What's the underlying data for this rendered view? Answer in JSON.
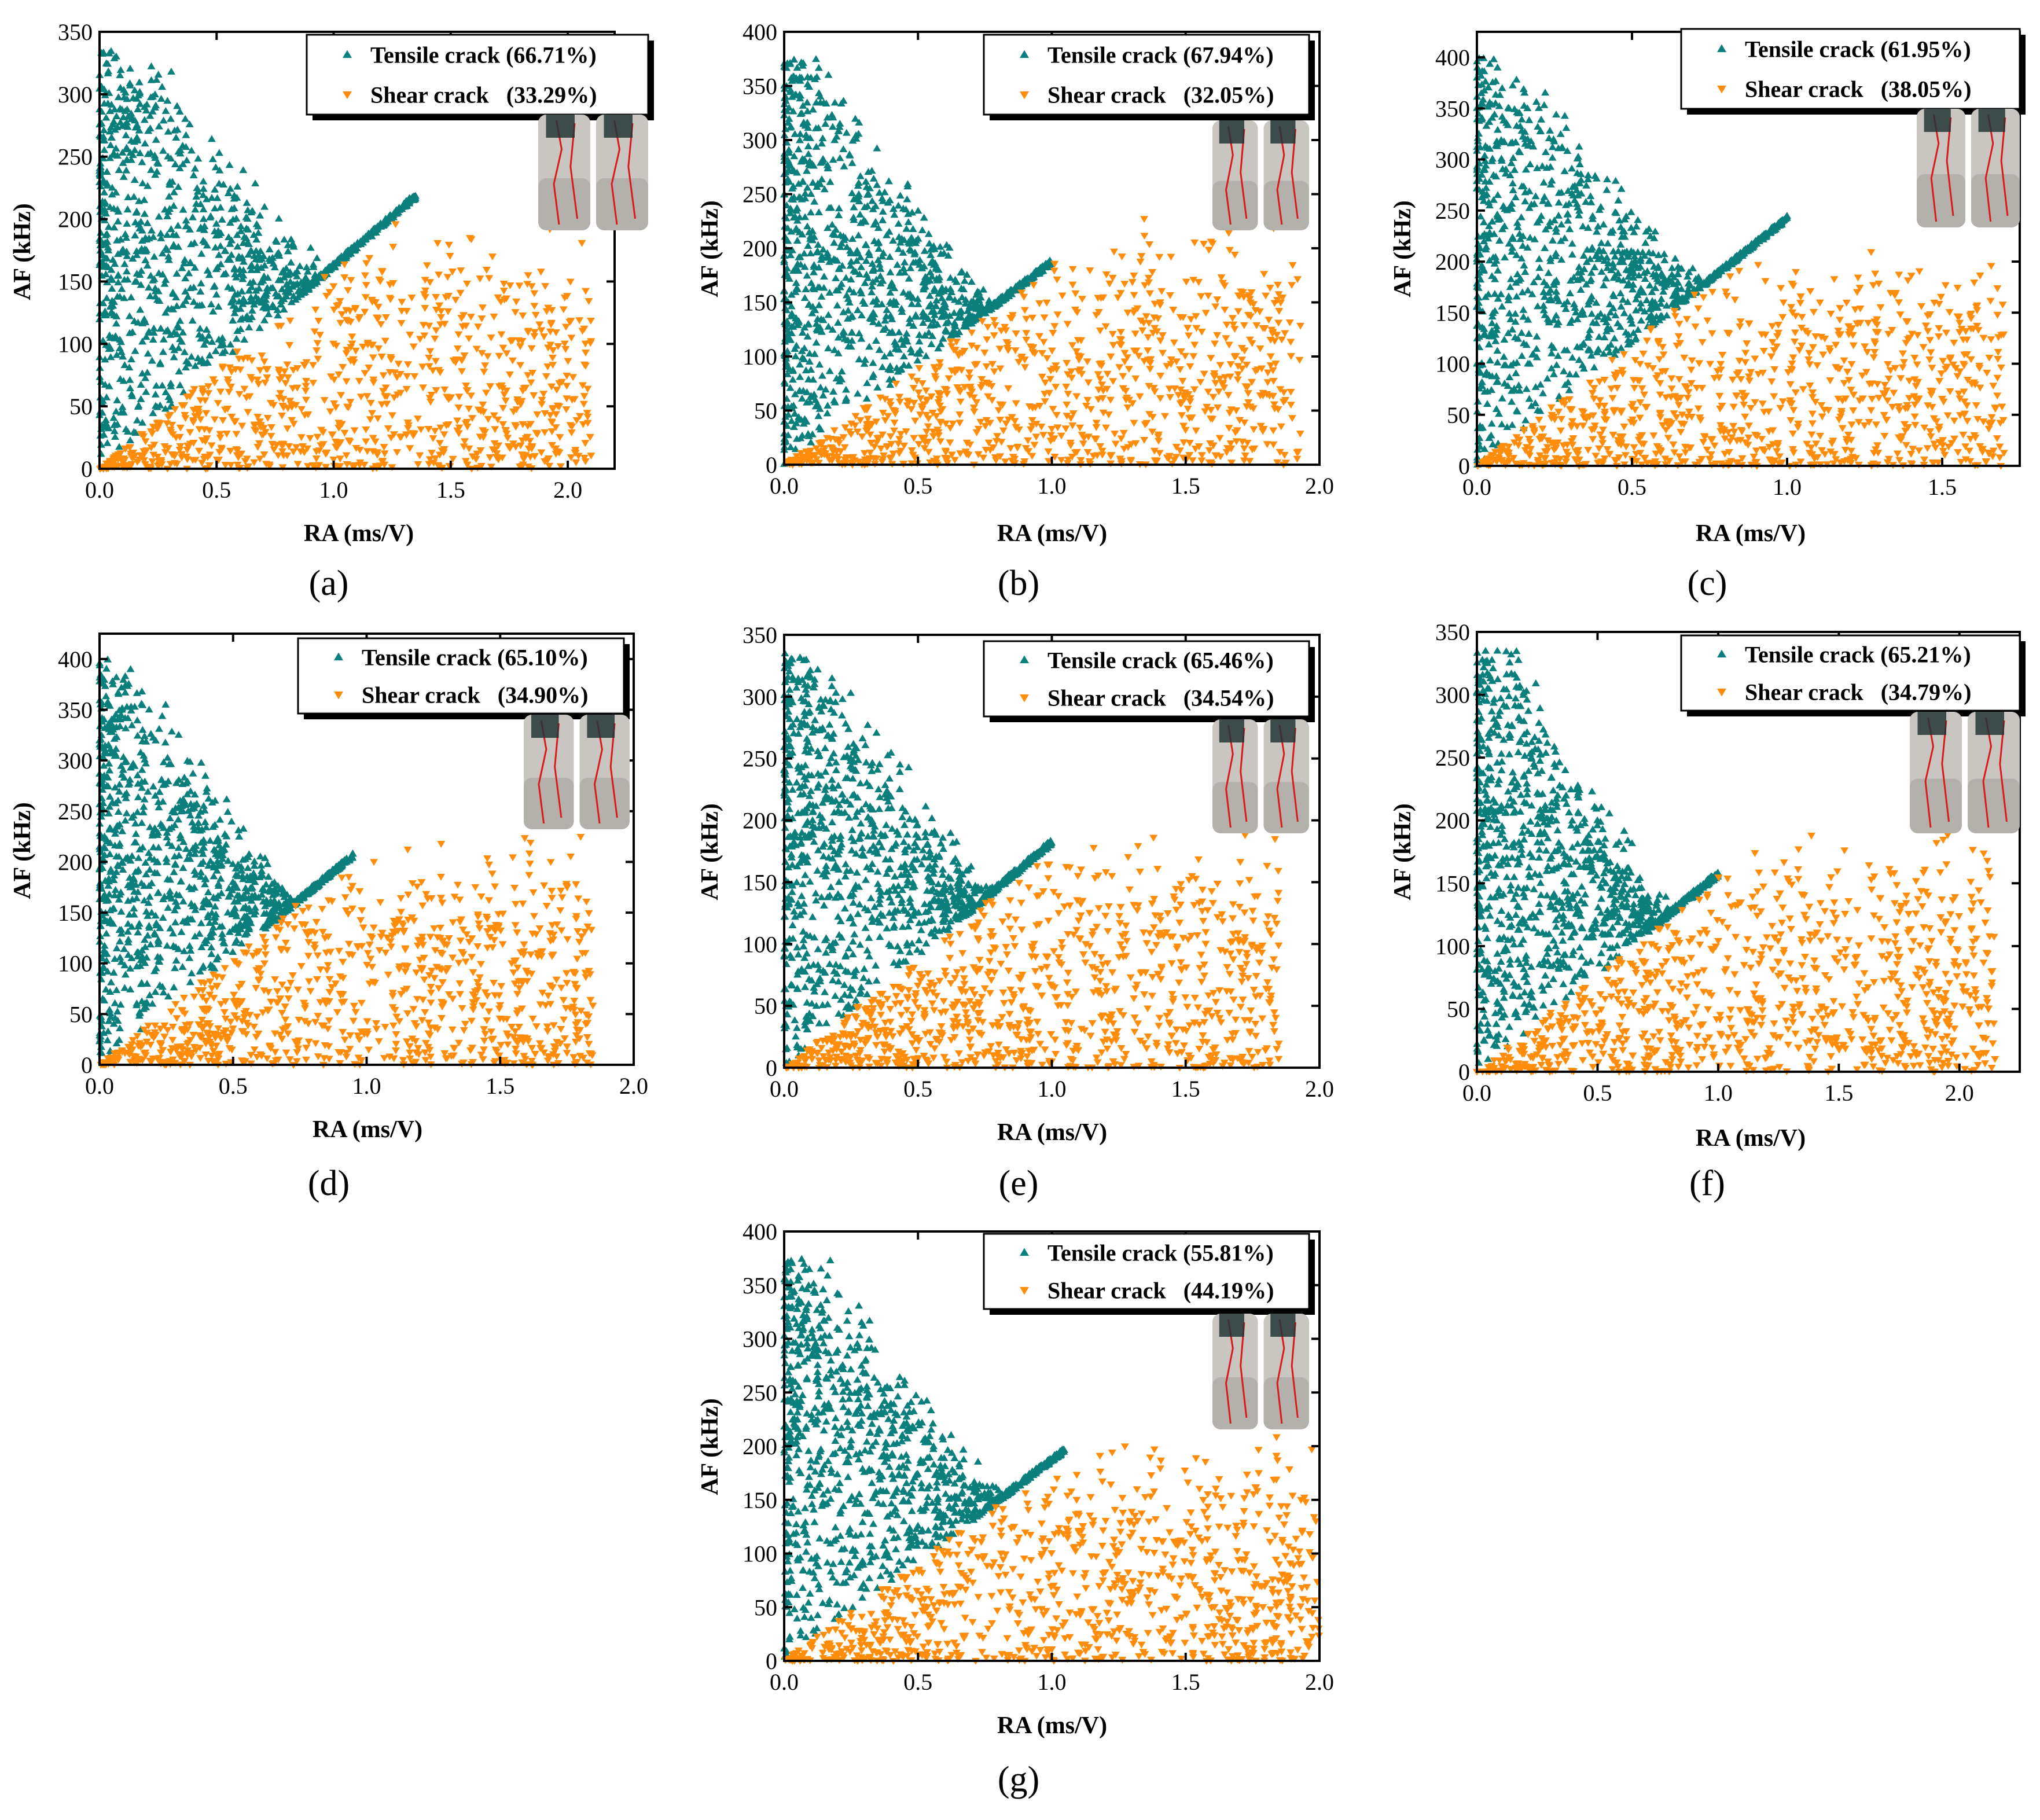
{
  "figure": {
    "colors": {
      "tensile": "#0b7f7c",
      "shear": "#ff8c0a"
    },
    "inset_icon": "cracked-cylinder-photo",
    "panels": [
      {
        "label": "(a)",
        "xlabel": "RA (ms/V)",
        "ylabel": "AF (kHz)",
        "xlim": [
          0,
          2.2
        ],
        "ylim": [
          0,
          350
        ],
        "xticks": [
          "0.0",
          "0.5",
          "1.0",
          "1.5",
          "2.0"
        ],
        "yticks": [
          "0",
          "50",
          "100",
          "150",
          "200",
          "250",
          "300",
          "350"
        ],
        "legend": [
          "Tensile crack (66.71%)",
          "Shear crack   (33.29%)"
        ]
      },
      {
        "label": "(b)",
        "xlabel": "RA (ms/V)",
        "ylabel": "AF (kHz)",
        "xlim": [
          0,
          2.0
        ],
        "ylim": [
          0,
          400
        ],
        "xticks": [
          "0.0",
          "0.5",
          "1.0",
          "1.5",
          "2.0"
        ],
        "yticks": [
          "0",
          "50",
          "100",
          "150",
          "200",
          "250",
          "300",
          "350",
          "400"
        ],
        "legend": [
          "Tensile crack (67.94%)",
          "Shear crack   (32.05%)"
        ]
      },
      {
        "label": "(c)",
        "xlabel": "RA (ms/V)",
        "ylabel": "AF (kHz)",
        "xlim": [
          0,
          1.75
        ],
        "ylim": [
          0,
          425
        ],
        "xticks": [
          "0.0",
          "0.5",
          "1.0",
          "1.5"
        ],
        "yticks": [
          "0",
          "50",
          "100",
          "150",
          "200",
          "250",
          "300",
          "350",
          "400"
        ],
        "legend": [
          "Tensile crack (61.95%)",
          "Shear crack   (38.05%)"
        ]
      },
      {
        "label": "(d)",
        "xlabel": "RA (ms/V)",
        "ylabel": "AF (kHz)",
        "xlim": [
          0,
          2.0
        ],
        "ylim": [
          0,
          425
        ],
        "xticks": [
          "0.0",
          "0.5",
          "1.0",
          "1.5",
          "2.0"
        ],
        "yticks": [
          "0",
          "50",
          "100",
          "150",
          "200",
          "250",
          "300",
          "350",
          "400"
        ],
        "legend": [
          "Tensile crack (65.10%)",
          "Shear crack   (34.90%)"
        ]
      },
      {
        "label": "(e)",
        "xlabel": "RA (ms/V)",
        "ylabel": "AF (kHz)",
        "xlim": [
          0,
          2.0
        ],
        "ylim": [
          0,
          350
        ],
        "xticks": [
          "0.0",
          "0.5",
          "1.0",
          "1.5",
          "2.0"
        ],
        "yticks": [
          "0",
          "50",
          "100",
          "150",
          "200",
          "250",
          "300",
          "350"
        ],
        "legend": [
          "Tensile crack (65.46%)",
          "Shear crack   (34.54%)"
        ]
      },
      {
        "label": "(f)",
        "xlabel": "RA (ms/V)",
        "ylabel": "AF (kHz)",
        "xlim": [
          0,
          2.25
        ],
        "ylim": [
          0,
          350
        ],
        "xticks": [
          "0.0",
          "0.5",
          "1.0",
          "1.5",
          "2.0"
        ],
        "yticks": [
          "0",
          "50",
          "100",
          "150",
          "200",
          "250",
          "300",
          "350"
        ],
        "legend": [
          "Tensile crack (65.21%)",
          "Shear crack   (34.79%)"
        ]
      },
      {
        "label": "(g)",
        "xlabel": "RA (ms/V)",
        "ylabel": "AF (kHz)",
        "xlim": [
          0,
          2.0
        ],
        "ylim": [
          0,
          400
        ],
        "xticks": [
          "0.0",
          "0.5",
          "1.0",
          "1.5",
          "2.0"
        ],
        "yticks": [
          "0",
          "50",
          "100",
          "150",
          "200",
          "250",
          "300",
          "350",
          "400"
        ],
        "legend": [
          "Tensile crack (55.81%)",
          "Shear crack   (44.19%)"
        ]
      }
    ]
  },
  "chart_data": [
    {
      "type": "scatter",
      "title": "(a)",
      "xlabel": "RA (ms/V)",
      "ylabel": "AF (kHz)",
      "xlim": [
        0,
        2.2
      ],
      "ylim": [
        0,
        350
      ],
      "boundary_slope_kHz_per_ms_per_V": 160,
      "series": [
        {
          "name": "Tensile crack",
          "percent": 66.71,
          "x_range": [
            0,
            1.35
          ],
          "y_range": [
            0,
            335
          ]
        },
        {
          "name": "Shear crack",
          "percent": 33.29,
          "x_range": [
            0,
            2.1
          ],
          "y_range": [
            0,
            205
          ]
        }
      ]
    },
    {
      "type": "scatter",
      "title": "(b)",
      "xlabel": "RA (ms/V)",
      "ylabel": "AF (kHz)",
      "xlim": [
        0,
        2.0
      ],
      "ylim": [
        0,
        400
      ],
      "boundary_slope_kHz_per_ms_per_V": 185,
      "series": [
        {
          "name": "Tensile crack",
          "percent": 67.94,
          "x_range": [
            0,
            1.0
          ],
          "y_range": [
            0,
            375
          ]
        },
        {
          "name": "Shear crack",
          "percent": 32.05,
          "x_range": [
            0,
            1.93
          ],
          "y_range": [
            0,
            240
          ]
        }
      ]
    },
    {
      "type": "scatter",
      "title": "(c)",
      "xlabel": "RA (ms/V)",
      "ylabel": "AF (kHz)",
      "xlim": [
        0,
        1.75
      ],
      "ylim": [
        0,
        425
      ],
      "boundary_slope_kHz_per_ms_per_V": 240,
      "series": [
        {
          "name": "Tensile crack",
          "percent": 61.95,
          "x_range": [
            0,
            1.0
          ],
          "y_range": [
            0,
            400
          ]
        },
        {
          "name": "Shear crack",
          "percent": 38.05,
          "x_range": [
            0,
            1.7
          ],
          "y_range": [
            0,
            215
          ]
        }
      ]
    },
    {
      "type": "scatter",
      "title": "(d)",
      "xlabel": "RA (ms/V)",
      "ylabel": "AF (kHz)",
      "xlim": [
        0,
        2.0
      ],
      "ylim": [
        0,
        425
      ],
      "boundary_slope_kHz_per_ms_per_V": 215,
      "series": [
        {
          "name": "Tensile crack",
          "percent": 65.1,
          "x_range": [
            0,
            0.95
          ],
          "y_range": [
            0,
            400
          ]
        },
        {
          "name": "Shear crack",
          "percent": 34.9,
          "x_range": [
            0,
            1.85
          ],
          "y_range": [
            0,
            230
          ]
        }
      ]
    },
    {
      "type": "scatter",
      "title": "(e)",
      "xlabel": "RA (ms/V)",
      "ylabel": "AF (kHz)",
      "xlim": [
        0,
        2.0
      ],
      "ylim": [
        0,
        350
      ],
      "boundary_slope_kHz_per_ms_per_V": 180,
      "series": [
        {
          "name": "Tensile crack",
          "percent": 65.46,
          "x_range": [
            0,
            1.0
          ],
          "y_range": [
            0,
            335
          ]
        },
        {
          "name": "Shear crack",
          "percent": 34.54,
          "x_range": [
            0,
            1.85
          ],
          "y_range": [
            0,
            195
          ]
        }
      ]
    },
    {
      "type": "scatter",
      "title": "(f)",
      "xlabel": "RA (ms/V)",
      "ylabel": "AF (kHz)",
      "xlim": [
        0,
        2.25
      ],
      "ylim": [
        0,
        350
      ],
      "boundary_slope_kHz_per_ms_per_V": 155,
      "series": [
        {
          "name": "Tensile crack",
          "percent": 65.21,
          "x_range": [
            0,
            1.0
          ],
          "y_range": [
            0,
            335
          ]
        },
        {
          "name": "Shear crack",
          "percent": 34.79,
          "x_range": [
            0,
            2.15
          ],
          "y_range": [
            0,
            195
          ]
        }
      ]
    },
    {
      "type": "scatter",
      "title": "(g)",
      "xlabel": "RA (ms/V)",
      "ylabel": "AF (kHz)",
      "xlim": [
        0,
        2.0
      ],
      "ylim": [
        0,
        400
      ],
      "boundary_slope_kHz_per_ms_per_V": 185,
      "series": [
        {
          "name": "Tensile crack",
          "percent": 55.81,
          "x_range": [
            0,
            1.05
          ],
          "y_range": [
            0,
            375
          ]
        },
        {
          "name": "Shear crack",
          "percent": 44.19,
          "x_range": [
            0,
            2.0
          ],
          "y_range": [
            0,
            215
          ]
        }
      ]
    }
  ]
}
